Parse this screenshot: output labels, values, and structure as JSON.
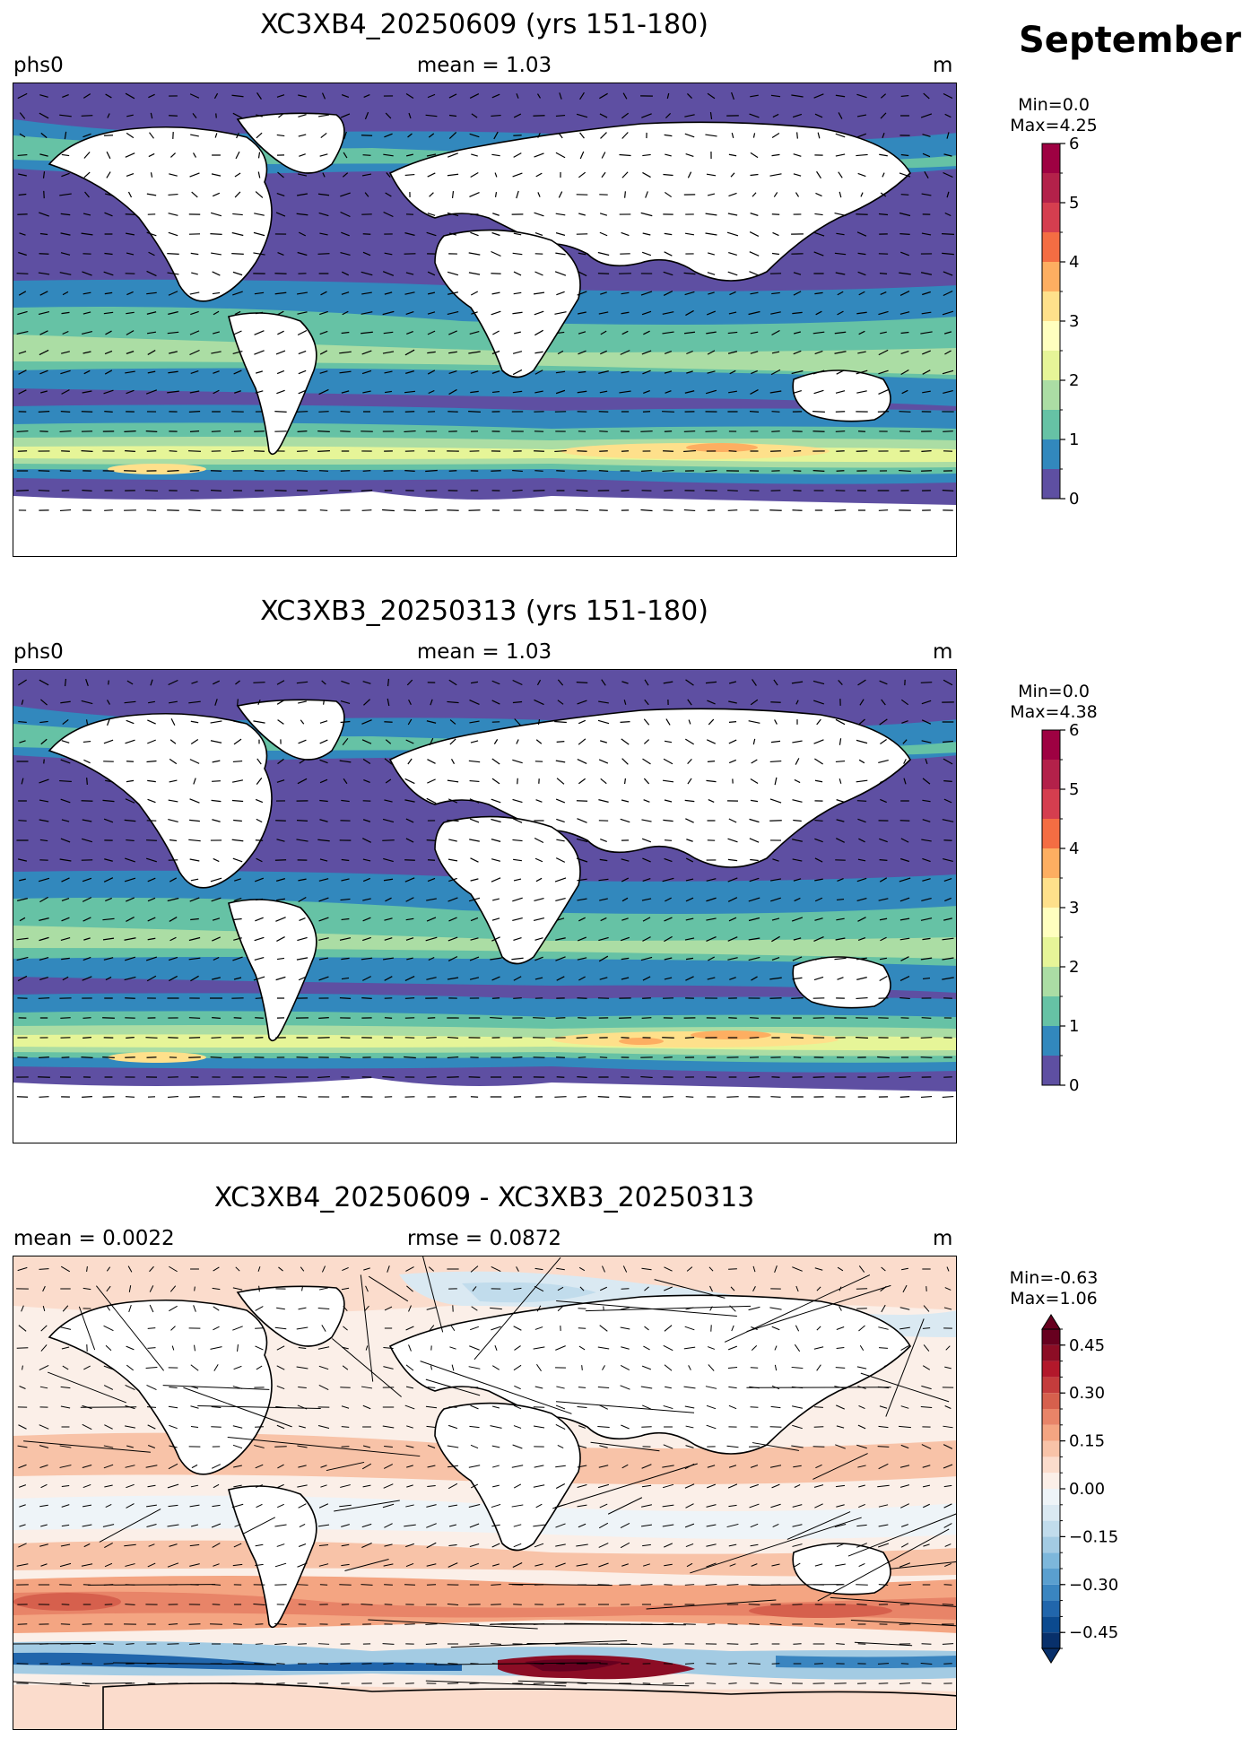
{
  "page": {
    "month_label": "September"
  },
  "chart_data": [
    {
      "type": "heatmap",
      "title": "XC3XB4_20250609 (yrs 151-180)",
      "left_label": "phs0",
      "center_label": "mean = 1.03",
      "units": "m",
      "min_label": "Min=0.0",
      "max_label": "Max=4.25",
      "colorbar": {
        "ticks": [
          0,
          1,
          2,
          3,
          4,
          5,
          6
        ],
        "tick_labels": [
          "0",
          "1",
          "2",
          "3",
          "4",
          "5",
          "6"
        ],
        "levels": [
          0,
          0.5,
          1,
          1.5,
          2,
          2.5,
          3,
          3.5,
          4,
          4.5,
          5,
          5.5,
          6
        ],
        "colors": [
          "#5e4fa2",
          "#3288bd",
          "#66c2a5",
          "#abdda4",
          "#e6f598",
          "#ffffbf",
          "#fee08b",
          "#fdae61",
          "#f46d43",
          "#d53e4f",
          "#b3214a",
          "#9e0142"
        ]
      },
      "overlay": "wave direction vectors"
    },
    {
      "type": "heatmap",
      "title": "XC3XB3_20250313 (yrs 151-180)",
      "left_label": "phs0",
      "center_label": "mean = 1.03",
      "units": "m",
      "min_label": "Min=0.0",
      "max_label": "Max=4.38",
      "colorbar": {
        "ticks": [
          0,
          1,
          2,
          3,
          4,
          5,
          6
        ],
        "tick_labels": [
          "0",
          "1",
          "2",
          "3",
          "4",
          "5",
          "6"
        ],
        "levels": [
          0,
          0.5,
          1,
          1.5,
          2,
          2.5,
          3,
          3.5,
          4,
          4.5,
          5,
          5.5,
          6
        ],
        "colors": [
          "#5e4fa2",
          "#3288bd",
          "#66c2a5",
          "#abdda4",
          "#e6f598",
          "#ffffbf",
          "#fee08b",
          "#fdae61",
          "#f46d43",
          "#d53e4f",
          "#b3214a",
          "#9e0142"
        ]
      },
      "overlay": "wave direction vectors"
    },
    {
      "type": "heatmap",
      "title": "XC3XB4_20250609 - XC3XB3_20250313",
      "left_label": "mean = 0.0022",
      "center_label": "rmse = 0.0872",
      "units": "m",
      "min_label": "Min=-0.63",
      "max_label": "Max=1.06",
      "colorbar": {
        "ticks": [
          -0.45,
          -0.3,
          -0.15,
          0.0,
          0.15,
          0.3,
          0.45
        ],
        "tick_labels": [
          "−0.45",
          "−0.30",
          "−0.15",
          "0.00",
          "0.15",
          "0.30",
          "0.45"
        ],
        "levels": [
          -0.5,
          -0.45,
          -0.4,
          -0.35,
          -0.3,
          -0.25,
          -0.2,
          -0.15,
          -0.1,
          -0.05,
          0,
          0.05,
          0.1,
          0.15,
          0.2,
          0.25,
          0.3,
          0.35,
          0.4,
          0.45,
          0.5
        ],
        "colors": [
          "#08306b",
          "#0b4a8f",
          "#2166ac",
          "#3a85c0",
          "#5a9fcf",
          "#7db7db",
          "#a3cbe3",
          "#c1dcec",
          "#dae9f2",
          "#eef4f8",
          "#fbefe8",
          "#fbdccc",
          "#f8c3a8",
          "#f4a582",
          "#e88468",
          "#d6604d",
          "#c43c3c",
          "#b2182b",
          "#8c0d25",
          "#67001f"
        ],
        "extend": "both"
      },
      "overlay": "wave direction difference vectors"
    }
  ]
}
